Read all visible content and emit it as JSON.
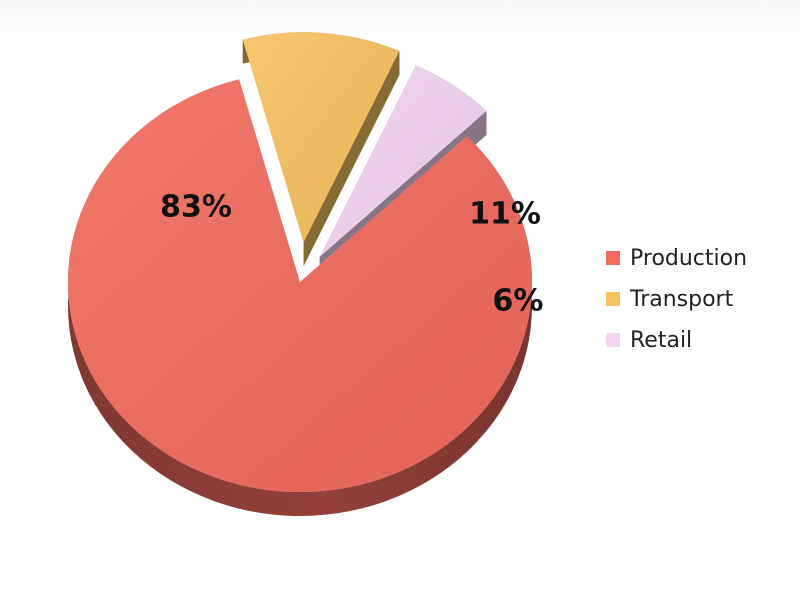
{
  "chart_data": {
    "type": "pie",
    "title": "",
    "style": "3d-exploded",
    "legend_position": "right",
    "slices": [
      {
        "name": "Production",
        "value": 83,
        "label": "83%",
        "color": "#f26b5e"
      },
      {
        "name": "Transport",
        "value": 11,
        "label": "11%",
        "color": "#f8c160"
      },
      {
        "name": "Retail",
        "value": 6,
        "label": "6%",
        "color": "#f3d5f2"
      }
    ]
  }
}
